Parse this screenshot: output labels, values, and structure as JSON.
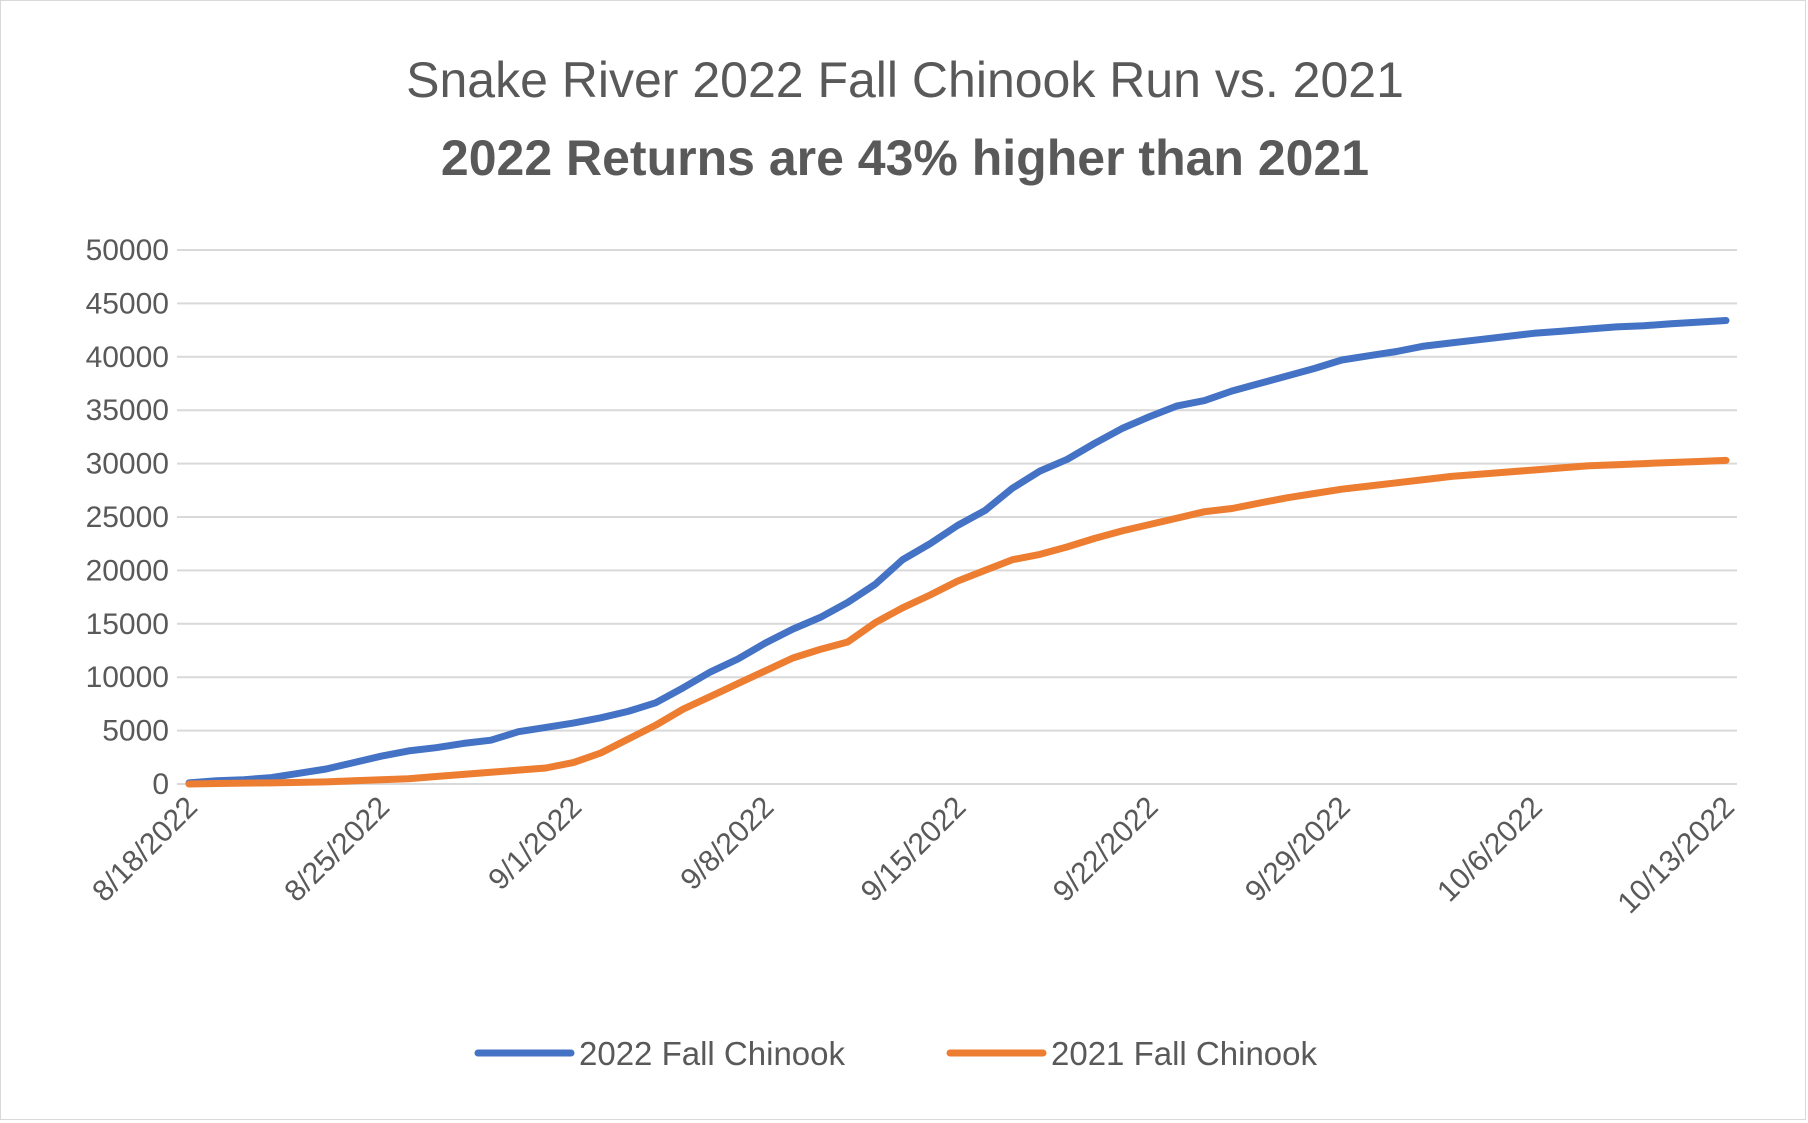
{
  "chart_data": {
    "type": "line",
    "title": "Snake River 2022 Fall Chinook Run vs. 2021",
    "subtitle": "2022 Returns are 43% higher than 2021",
    "xlabel": "",
    "ylabel": "",
    "ylim": [
      0,
      50000
    ],
    "y_ticks": [
      "0",
      "5000",
      "10000",
      "15000",
      "20000",
      "25000",
      "30000",
      "35000",
      "40000",
      "45000",
      "50000"
    ],
    "x_tick_labels": [
      "8/18/2022",
      "8/25/2022",
      "9/1/2022",
      "9/8/2022",
      "9/15/2022",
      "9/22/2022",
      "9/29/2022",
      "10/6/2022",
      "10/13/2022"
    ],
    "grid": true,
    "legend_position": "bottom",
    "x": [
      "8/18/2022",
      "8/19/2022",
      "8/20/2022",
      "8/21/2022",
      "8/22/2022",
      "8/23/2022",
      "8/24/2022",
      "8/25/2022",
      "8/26/2022",
      "8/27/2022",
      "8/28/2022",
      "8/29/2022",
      "8/30/2022",
      "8/31/2022",
      "9/1/2022",
      "9/2/2022",
      "9/3/2022",
      "9/4/2022",
      "9/5/2022",
      "9/6/2022",
      "9/7/2022",
      "9/8/2022",
      "9/9/2022",
      "9/10/2022",
      "9/11/2022",
      "9/12/2022",
      "9/13/2022",
      "9/14/2022",
      "9/15/2022",
      "9/16/2022",
      "9/17/2022",
      "9/18/2022",
      "9/19/2022",
      "9/20/2022",
      "9/21/2022",
      "9/22/2022",
      "9/23/2022",
      "9/24/2022",
      "9/25/2022",
      "9/26/2022",
      "9/27/2022",
      "9/28/2022",
      "9/29/2022",
      "9/30/2022",
      "10/1/2022",
      "10/2/2022",
      "10/3/2022",
      "10/4/2022",
      "10/5/2022",
      "10/6/2022",
      "10/7/2022",
      "10/8/2022",
      "10/9/2022",
      "10/10/2022",
      "10/11/2022",
      "10/12/2022",
      "10/13/2022"
    ],
    "series": [
      {
        "name": "2022 Fall Chinook",
        "color": "#4472c4",
        "values": [
          100,
          300,
          400,
          600,
          1000,
          1400,
          2000,
          2600,
          3100,
          3400,
          3800,
          4100,
          4900,
          5300,
          5700,
          6200,
          6800,
          7600,
          9000,
          10500,
          11700,
          13200,
          14500,
          15600,
          17000,
          18700,
          21000,
          22500,
          24200,
          25600,
          27700,
          29300,
          30400,
          31900,
          33300,
          34400,
          35400,
          35900,
          36800,
          37500,
          38200,
          38900,
          39700,
          40100,
          40500,
          41000,
          41300,
          41600,
          41900,
          42200,
          42400,
          42600,
          42800,
          42900,
          43100,
          43250,
          43400
        ]
      },
      {
        "name": "2021 Fall Chinook",
        "color": "#ed7d31",
        "values": [
          0,
          50,
          80,
          100,
          150,
          200,
          300,
          400,
          500,
          700,
          900,
          1100,
          1300,
          1500,
          2000,
          2900,
          4200,
          5500,
          7000,
          8200,
          9400,
          10600,
          11800,
          12600,
          13300,
          15100,
          16500,
          17700,
          19000,
          20000,
          21000,
          21500,
          22200,
          23000,
          23700,
          24300,
          24900,
          25500,
          25800,
          26300,
          26800,
          27200,
          27600,
          27900,
          28200,
          28500,
          28800,
          29000,
          29200,
          29400,
          29600,
          29800,
          29900,
          30000,
          30100,
          30200,
          30300
        ]
      }
    ]
  }
}
